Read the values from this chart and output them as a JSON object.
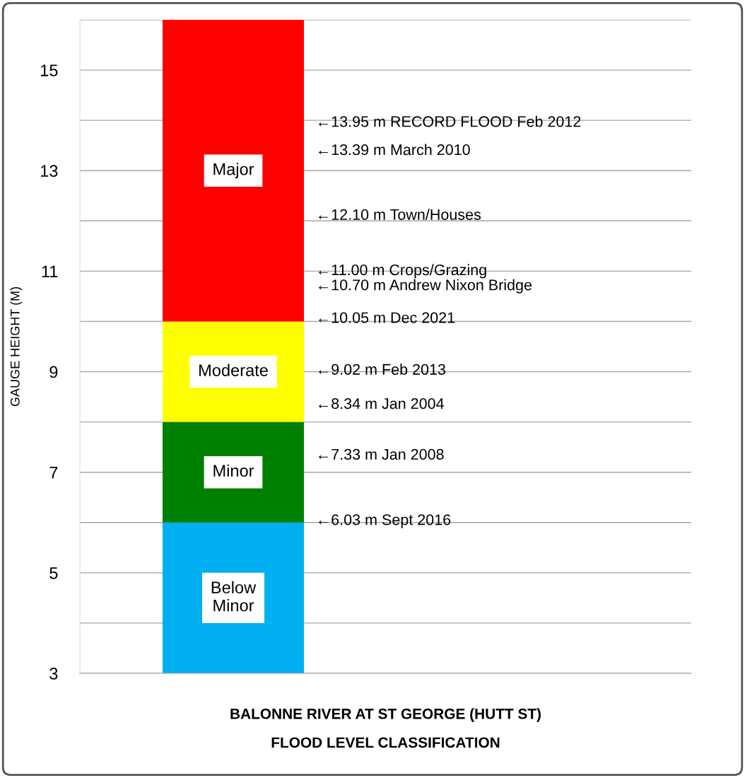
{
  "chart_data": {
    "type": "bar",
    "categories": [
      null
    ],
    "series": [
      {
        "name": "Below\nMinor",
        "color": "#00b0f0",
        "base": [
          3
        ],
        "values": [
          3
        ]
      },
      {
        "name": "Minor",
        "color": "#008000",
        "base": [
          6
        ],
        "values": [
          2
        ]
      },
      {
        "name": "Moderate",
        "color": "#ffff00",
        "base": [
          8
        ],
        "values": [
          2
        ]
      },
      {
        "name": "Major",
        "color": "#ff0000",
        "base": [
          10
        ],
        "values": [
          6
        ]
      }
    ],
    "ylabel": "GAUGE HEIGHT (M)",
    "xlabel": "BALONNE RIVER AT ST GEORGE (HUTT ST)\nFLOOD LEVEL CLASSIFICATION",
    "ylim": [
      3,
      16
    ],
    "yticks": [
      3,
      {
        "value": 4,
        "label": null
      },
      5,
      {
        "value": 6,
        "label": null
      },
      7,
      {
        "value": 8,
        "label": null
      },
      9,
      {
        "value": 10,
        "label": null
      },
      11,
      {
        "value": 12,
        "label": null
      },
      13,
      {
        "value": 14,
        "label": null
      },
      15,
      {
        "value": 16,
        "label": null
      }
    ],
    "grid": "y",
    "legend": false,
    "annotations": [
      "←13.95 m RECORD FLOOD Feb 2012",
      "←13.39 m March 2010",
      "←12.10 m Town/Houses",
      "←11.00 m Crops/Grazing",
      "←10.70 m Andrew Nixon Bridge",
      "←10.05 m Dec 2021",
      "←9.02 m Feb 2013",
      "←8.34 m Jan 2004",
      "←7.33 m Jan 2008",
      "←6.03 m Sept 2016"
    ]
  }
}
